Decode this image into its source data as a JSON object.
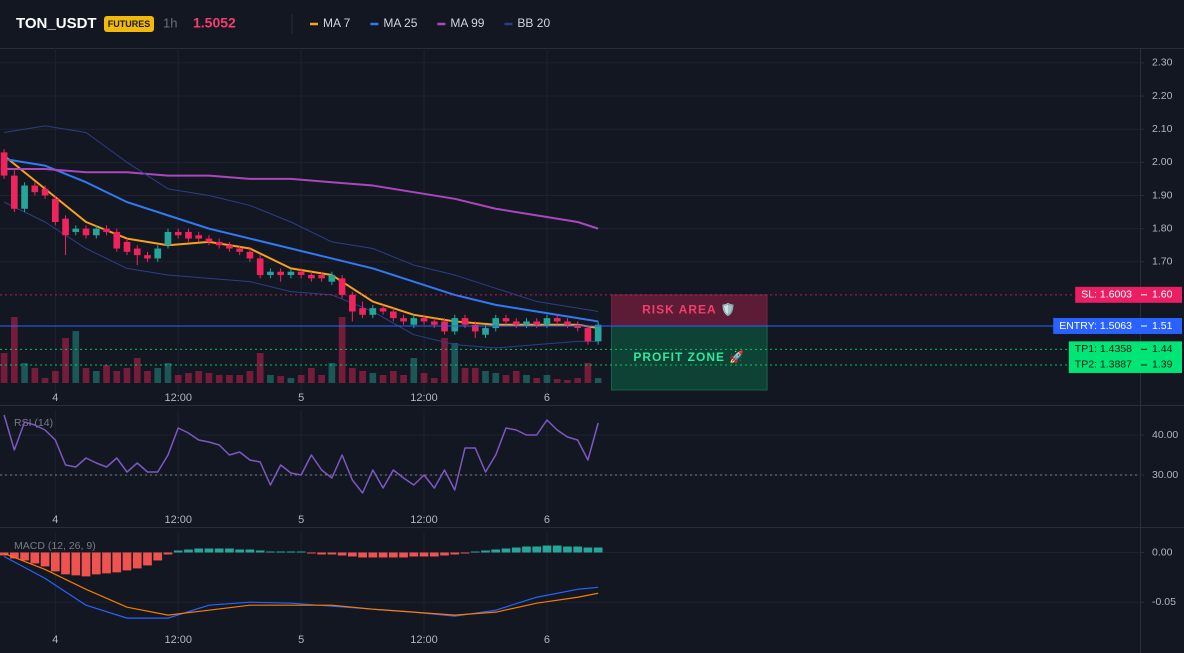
{
  "chart_data": [
    {
      "type": "candlestick",
      "title": "TON_USDT",
      "badge": "FUTURES",
      "interval": "1h",
      "last_price": 1.5052,
      "last_price_color": "#f23d6d",
      "up_color": "#26a69a",
      "down_color": "#f0245c",
      "grid": true,
      "x": [
        -5,
        -4,
        -3,
        -2,
        -1,
        0,
        1,
        2,
        3,
        4,
        5,
        6,
        7,
        8,
        9,
        10,
        11,
        12,
        13,
        14,
        15,
        16,
        17,
        18,
        19,
        20,
        21,
        22,
        23,
        24,
        25,
        26,
        27,
        28,
        29,
        30,
        31,
        32,
        33,
        34,
        35,
        36,
        37,
        38,
        39,
        40,
        41,
        42,
        43,
        44,
        45,
        46,
        47,
        48,
        49,
        50,
        51,
        52,
        53
      ],
      "open": [
        2.03,
        1.96,
        1.86,
        1.93,
        1.92,
        1.89,
        1.83,
        1.79,
        1.8,
        1.78,
        1.8,
        1.79,
        1.76,
        1.74,
        1.72,
        1.71,
        1.75,
        1.79,
        1.79,
        1.78,
        1.77,
        1.76,
        1.75,
        1.74,
        1.73,
        1.71,
        1.66,
        1.67,
        1.66,
        1.67,
        1.66,
        1.66,
        1.64,
        1.65,
        1.6,
        1.56,
        1.54,
        1.56,
        1.55,
        1.53,
        1.51,
        1.53,
        1.52,
        1.52,
        1.49,
        1.53,
        1.51,
        1.48,
        1.5,
        1.53,
        1.52,
        1.51,
        1.52,
        1.51,
        1.53,
        1.52,
        1.51,
        1.5,
        1.46
      ],
      "high": [
        2.04,
        1.98,
        1.94,
        1.94,
        1.93,
        1.9,
        1.84,
        1.81,
        1.81,
        1.81,
        1.81,
        1.8,
        1.77,
        1.75,
        1.73,
        1.75,
        1.8,
        1.8,
        1.8,
        1.79,
        1.78,
        1.77,
        1.76,
        1.75,
        1.74,
        1.72,
        1.68,
        1.68,
        1.68,
        1.68,
        1.67,
        1.67,
        1.67,
        1.66,
        1.61,
        1.58,
        1.57,
        1.57,
        1.56,
        1.54,
        1.54,
        1.54,
        1.53,
        1.53,
        1.54,
        1.54,
        1.52,
        1.51,
        1.54,
        1.54,
        1.53,
        1.53,
        1.53,
        1.54,
        1.54,
        1.53,
        1.52,
        1.51,
        1.52
      ],
      "low": [
        1.95,
        1.85,
        1.85,
        1.9,
        1.89,
        1.81,
        1.72,
        1.78,
        1.77,
        1.77,
        1.78,
        1.73,
        1.72,
        1.69,
        1.7,
        1.7,
        1.74,
        1.77,
        1.76,
        1.76,
        1.75,
        1.74,
        1.73,
        1.72,
        1.7,
        1.65,
        1.65,
        1.64,
        1.65,
        1.65,
        1.64,
        1.64,
        1.63,
        1.59,
        1.52,
        1.53,
        1.53,
        1.54,
        1.52,
        1.51,
        1.5,
        1.51,
        1.5,
        1.48,
        1.48,
        1.5,
        1.47,
        1.47,
        1.49,
        1.51,
        1.5,
        1.5,
        1.5,
        1.5,
        1.51,
        1.5,
        1.49,
        1.45,
        1.45
      ],
      "close": [
        1.96,
        1.86,
        1.93,
        1.91,
        1.9,
        1.82,
        1.78,
        1.8,
        1.78,
        1.8,
        1.79,
        1.74,
        1.73,
        1.72,
        1.71,
        1.74,
        1.79,
        1.78,
        1.77,
        1.77,
        1.76,
        1.75,
        1.74,
        1.73,
        1.71,
        1.66,
        1.67,
        1.66,
        1.67,
        1.66,
        1.65,
        1.65,
        1.66,
        1.6,
        1.55,
        1.54,
        1.56,
        1.55,
        1.53,
        1.52,
        1.53,
        1.52,
        1.51,
        1.49,
        1.53,
        1.51,
        1.49,
        1.5,
        1.53,
        1.52,
        1.51,
        1.52,
        1.51,
        1.53,
        1.52,
        1.51,
        1.5,
        1.46,
        1.51
      ],
      "volume": [
        30,
        66,
        20,
        15,
        5,
        12,
        45,
        52,
        15,
        12,
        18,
        12,
        15,
        25,
        12,
        15,
        20,
        8,
        10,
        12,
        10,
        8,
        8,
        8,
        12,
        30,
        8,
        7,
        5,
        8,
        15,
        8,
        20,
        66,
        15,
        12,
        10,
        8,
        12,
        8,
        25,
        10,
        5,
        45,
        40,
        15,
        15,
        12,
        10,
        8,
        12,
        8,
        5,
        8,
        4,
        3,
        5,
        20,
        5
      ],
      "overlays": [
        {
          "name": "MA 7",
          "color": "#f7a21b",
          "x": [
            -5,
            -1,
            3,
            7,
            11,
            15,
            19,
            23,
            27,
            31,
            35,
            39,
            43,
            47,
            51,
            53
          ],
          "values": [
            2.02,
            1.92,
            1.82,
            1.77,
            1.75,
            1.76,
            1.74,
            1.68,
            1.66,
            1.58,
            1.54,
            1.52,
            1.51,
            1.51,
            1.51,
            1.5
          ]
        },
        {
          "name": "MA 25",
          "color": "#3179f5",
          "x": [
            -5,
            -1,
            3,
            7,
            11,
            15,
            19,
            23,
            27,
            31,
            35,
            39,
            43,
            47,
            51,
            53
          ],
          "values": [
            2.01,
            1.99,
            1.94,
            1.88,
            1.84,
            1.8,
            1.77,
            1.74,
            1.71,
            1.68,
            1.64,
            1.6,
            1.57,
            1.55,
            1.53,
            1.52
          ]
        },
        {
          "name": "MA 99",
          "color": "#ab47bc",
          "x": [
            -5,
            -1,
            3,
            7,
            11,
            15,
            19,
            23,
            27,
            31,
            35,
            39,
            43,
            47,
            51,
            53
          ],
          "values": [
            1.98,
            1.98,
            1.97,
            1.97,
            1.96,
            1.96,
            1.95,
            1.95,
            1.94,
            1.93,
            1.91,
            1.89,
            1.86,
            1.84,
            1.82,
            1.8
          ]
        },
        {
          "name": "BB 20",
          "color": "#2b3f87",
          "x": [
            -5,
            -1,
            3,
            7,
            11,
            15,
            19,
            23,
            27,
            31,
            35,
            39,
            43,
            47,
            51,
            53
          ],
          "values": [
            2.09,
            2.11,
            2.09,
            2.0,
            1.92,
            1.9,
            1.87,
            1.82,
            1.76,
            1.74,
            1.69,
            1.66,
            1.62,
            1.58,
            1.56,
            1.55
          ],
          "lower": [
            1.88,
            1.82,
            1.74,
            1.68,
            1.66,
            1.65,
            1.64,
            1.61,
            1.6,
            1.55,
            1.48,
            1.45,
            1.44,
            1.45,
            1.46,
            1.46
          ]
        }
      ],
      "xlim": [
        -5.4,
        105.9
      ],
      "xticks": [
        {
          "value": 0,
          "label": "4"
        },
        {
          "value": 12,
          "label": "12:00"
        },
        {
          "value": 24,
          "label": "5"
        },
        {
          "value": 36,
          "label": "12:00"
        },
        {
          "value": 48,
          "label": "6"
        }
      ],
      "ylim": [
        1.289,
        2.345
      ],
      "yticks": [
        {
          "value": 2.3,
          "label": "2.30"
        },
        {
          "value": 2.2,
          "label": "2.20"
        },
        {
          "value": 2.1,
          "label": "2.10"
        },
        {
          "value": 2,
          "label": "2.00"
        },
        {
          "value": 1.9,
          "label": "1.90"
        },
        {
          "value": 1.8,
          "label": "1.80"
        },
        {
          "value": 1.7,
          "label": "1.70"
        }
      ],
      "levels": [
        {
          "label": "SL: 1.6003",
          "value": 1.6003,
          "axis_label": "1.60",
          "color": "#e91e63",
          "text_color": "#ffffff",
          "style": "dotted"
        },
        {
          "label": "ENTRY: 1.5063",
          "value": 1.5063,
          "axis_label": "1.51",
          "color": "#2962ff",
          "text_color": "#ffffff",
          "style": "solid"
        },
        {
          "label": "TP1: 1.4358",
          "value": 1.4358,
          "axis_label": "1.44",
          "color": "#00e676",
          "text_color": "#0b1a12",
          "style": "dotted"
        },
        {
          "label": "TP2: 1.3887",
          "value": 1.3887,
          "axis_label": "1.39",
          "color": "#00e676",
          "text_color": "#0b1a12",
          "style": "dotted"
        }
      ],
      "zones": [
        {
          "label": "RISK AREA 🛡️",
          "from": 1.5063,
          "to": 1.6003,
          "x": [
            54.3,
            69.5
          ],
          "color": "#6b1d3a",
          "text_color": "#f23d6d"
        },
        {
          "label": "PROFIT ZONE 🚀",
          "from": 1.5063,
          "to": 1.313,
          "x": [
            54.3,
            69.5
          ],
          "color": "#0c4a38",
          "text_color": "#2ee8a0"
        }
      ]
    },
    {
      "type": "line",
      "title": "RSI (14)",
      "color": "#7e57c2",
      "grid": true,
      "x": [
        -5,
        -4,
        -3,
        -2,
        -1,
        0,
        1,
        2,
        3,
        4,
        5,
        6,
        7,
        8,
        9,
        10,
        11,
        12,
        13,
        14,
        15,
        16,
        17,
        18,
        19,
        20,
        21,
        22,
        23,
        24,
        25,
        26,
        27,
        28,
        29,
        30,
        31,
        32,
        33,
        34,
        35,
        36,
        37,
        38,
        39,
        40,
        41,
        42,
        43,
        44,
        45,
        46,
        47,
        48,
        49,
        50,
        51,
        52,
        53
      ],
      "values": [
        45,
        36.25,
        43.25,
        42.5,
        41.25,
        38.75,
        32.5,
        32,
        34.25,
        33,
        32,
        34.25,
        30.75,
        33,
        30.75,
        30.75,
        35,
        41.75,
        40.5,
        38.75,
        38.25,
        37.5,
        35,
        35.75,
        33.75,
        33.25,
        27.5,
        32.5,
        30.5,
        30,
        35,
        31.25,
        29.25,
        35,
        28.75,
        25.5,
        31.25,
        26.75,
        31.25,
        29.25,
        27.5,
        30,
        26.75,
        31.25,
        26.25,
        36.75,
        36.75,
        30.75,
        35,
        41.75,
        41.25,
        40,
        40,
        43.75,
        41.25,
        39.5,
        38.75,
        33.75,
        43
      ],
      "guides": [
        30
      ],
      "xlim": [
        -5.4,
        105.9
      ],
      "xticks": [
        {
          "value": 0,
          "label": "4"
        },
        {
          "value": 12,
          "label": "12:00"
        },
        {
          "value": 24,
          "label": "5"
        },
        {
          "value": 36,
          "label": "12:00"
        },
        {
          "value": 48,
          "label": "6"
        }
      ],
      "ylim": [
        18.75,
        46.25
      ],
      "yticks": [
        {
          "value": 40,
          "label": "40.00"
        },
        {
          "value": 30,
          "label": "30.00"
        }
      ]
    },
    {
      "type": "bar",
      "title": "MACD (12, 26, 9)",
      "grid": true,
      "up_color": "#26a69a",
      "down_color": "#ef5350",
      "x": [
        -5,
        -4,
        -3,
        -2,
        -1,
        0,
        1,
        2,
        3,
        4,
        5,
        6,
        7,
        8,
        9,
        10,
        11,
        12,
        13,
        14,
        15,
        16,
        17,
        18,
        19,
        20,
        21,
        22,
        23,
        24,
        25,
        26,
        27,
        28,
        29,
        30,
        31,
        32,
        33,
        34,
        35,
        36,
        37,
        38,
        39,
        40,
        41,
        42,
        43,
        44,
        45,
        46,
        47,
        48,
        49,
        50,
        51,
        52,
        53
      ],
      "values": [
        -0.003,
        -0.006,
        -0.008,
        -0.011,
        -0.014,
        -0.019,
        -0.022,
        -0.023,
        -0.024,
        -0.022,
        -0.021,
        -0.02,
        -0.018,
        -0.016,
        -0.013,
        -0.008,
        -0.002,
        0.002,
        0.003,
        0.004,
        0.004,
        0.004,
        0.004,
        0.003,
        0.003,
        0.002,
        0.001,
        0.001,
        0.001,
        0.001,
        -0.001,
        -0.002,
        -0.002,
        -0.003,
        -0.004,
        -0.005,
        -0.005,
        -0.005,
        -0.005,
        -0.005,
        -0.004,
        -0.004,
        -0.004,
        -0.003,
        -0.002,
        -0.001,
        0.001,
        0.002,
        0.003,
        0.004,
        0.005,
        0.006,
        0.006,
        0.007,
        0.007,
        0.006,
        0.006,
        0.005,
        0.005
      ],
      "series": [
        {
          "color": "#2962ff",
          "x": [
            -5,
            -1,
            3,
            7,
            11,
            15,
            19,
            23,
            27,
            31,
            35,
            39,
            43,
            47,
            51,
            53
          ],
          "values": [
            -0.004,
            -0.026,
            -0.053,
            -0.066,
            -0.066,
            -0.053,
            -0.05,
            -0.051,
            -0.054,
            -0.057,
            -0.06,
            -0.064,
            -0.058,
            -0.045,
            -0.037,
            -0.035
          ]
        },
        {
          "color": "#f57c00",
          "x": [
            -5,
            -1,
            3,
            7,
            11,
            15,
            19,
            23,
            27,
            31,
            35,
            39,
            43,
            47,
            51,
            53
          ],
          "values": [
            -0.001,
            -0.017,
            -0.037,
            -0.055,
            -0.063,
            -0.058,
            -0.053,
            -0.053,
            -0.053,
            -0.057,
            -0.06,
            -0.063,
            -0.06,
            -0.051,
            -0.045,
            -0.041
          ]
        }
      ],
      "xlim": [
        -5.4,
        105.9
      ],
      "xticks": [
        {
          "value": 0,
          "label": "4"
        },
        {
          "value": 12,
          "label": "12:00"
        },
        {
          "value": 24,
          "label": "5"
        },
        {
          "value": 36,
          "label": "12:00"
        },
        {
          "value": 48,
          "label": "6"
        }
      ],
      "ylim": [
        -0.088,
        0.0196
      ],
      "yticks": [
        {
          "value": 0,
          "label": "0.00"
        },
        -0.05
      ]
    }
  ]
}
